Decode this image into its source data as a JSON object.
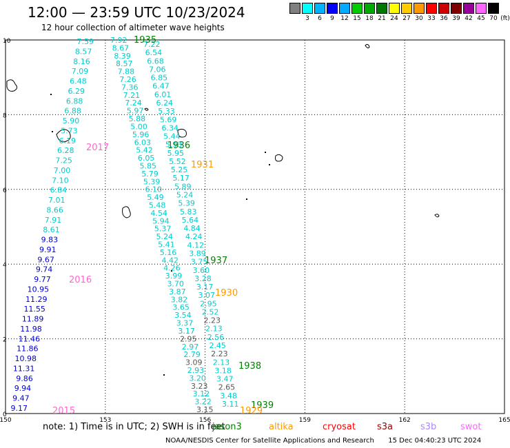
{
  "header": {
    "title": "12:00 — 23:59 UTC 10/23/2024",
    "subtitle": "12 hour collection of altimeter wave heights"
  },
  "legend_scale": {
    "unit": "(ft)",
    "bins": [
      {
        "label": "",
        "color": "#808080"
      },
      {
        "label": "3",
        "color": "#00ffff"
      },
      {
        "label": "6",
        "color": "#00b3ff"
      },
      {
        "label": "9",
        "color": "#0000ff"
      },
      {
        "label": "12",
        "color": "#00aaff"
      },
      {
        "label": "15",
        "color": "#00cc00"
      },
      {
        "label": "18",
        "color": "#00aa00"
      },
      {
        "label": "21",
        "color": "#007700"
      },
      {
        "label": "24",
        "color": "#ffff00"
      },
      {
        "label": "27",
        "color": "#ffcc00"
      },
      {
        "label": "30",
        "color": "#ff9900"
      },
      {
        "label": "33",
        "color": "#ff0000"
      },
      {
        "label": "36",
        "color": "#cc0000"
      },
      {
        "label": "39",
        "color": "#800000"
      },
      {
        "label": "42",
        "color": "#990099"
      },
      {
        "label": "45",
        "color": "#ff66ff"
      },
      {
        "label": "70",
        "color": "#000000"
      }
    ]
  },
  "axes": {
    "x_ticks": [
      "150",
      "153",
      "156",
      "159",
      "162",
      "165"
    ],
    "y_ticks": [
      "0",
      "2",
      "4",
      "6",
      "8",
      "10"
    ]
  },
  "colors": {
    "cyan": "#00cccc",
    "blue": "#0000cc",
    "gray": "#555555",
    "green": "#008000",
    "orange": "#ff9900",
    "pink": "#ff66cc"
  },
  "tracks": {
    "left_values": [
      "7.59",
      "8.57",
      "8.16",
      "7.09",
      "6.48",
      "6.29",
      "6.88",
      "6.88",
      "5.90",
      "5.73",
      "6.19",
      "6.28",
      "7.25",
      "7.00",
      "7.10",
      "6.84",
      "7.01",
      "8.66",
      "7.91",
      "8.61",
      "9.83",
      "9.91",
      "9.67",
      "9.74",
      "9.77",
      "10.95",
      "11.29",
      "11.55",
      "11.89",
      "11.98",
      "11.46",
      "11.86",
      "10.98",
      "11.31",
      "9.86",
      "9.94",
      "9.47",
      "9.17"
    ],
    "left_colors": [
      "cyan",
      "cyan",
      "cyan",
      "cyan",
      "cyan",
      "cyan",
      "cyan",
      "cyan",
      "cyan",
      "cyan",
      "cyan",
      "cyan",
      "cyan",
      "cyan",
      "cyan",
      "cyan",
      "cyan",
      "cyan",
      "cyan",
      "cyan",
      "blue",
      "blue",
      "blue",
      "blue",
      "blue",
      "blue",
      "blue",
      "blue",
      "blue",
      "blue",
      "blue",
      "blue",
      "blue",
      "blue",
      "blue",
      "blue",
      "blue",
      "blue"
    ],
    "right_col1": [
      "7.92",
      "8.67",
      "8.39",
      "8.57",
      "7.88",
      "7.26",
      "7.36",
      "7.21",
      "7.24",
      "5.97",
      "5.88",
      "5.00",
      "5.96",
      "6.03",
      "5.42",
      "6.05",
      "5.85",
      "5.79",
      "5.39",
      "6.10",
      "5.49",
      "5.48",
      "4.54",
      "5.94",
      "5.37",
      "5.24",
      "5.41",
      "5.16",
      "4.42",
      "4.26",
      "3.99",
      "3.70",
      "3.87",
      "3.82",
      "3.65",
      "3.54",
      "3.37",
      "3.17",
      "2.95",
      "2.97",
      "2.79",
      "3.09",
      "2.93",
      "3.20",
      "3.23",
      "3.12",
      "3.22",
      "3.15"
    ],
    "right_col2": [
      "7.22",
      "6.54",
      "6.68",
      "7.06",
      "6.85",
      "6.47",
      "6.01",
      "6.24",
      "5.33",
      "5.69",
      "6.34",
      "5.44",
      "5.93",
      "5.95",
      "5.52",
      "5.25",
      "5.17",
      "5.89",
      "5.24",
      "5.39",
      "5.83",
      "5.64",
      "4.84",
      "4.24",
      "4.12",
      "3.89",
      "3.75",
      "3.60",
      "3.28",
      "3.17",
      "3.07",
      "2.95",
      "2.52",
      "2.23",
      "2.13",
      "2.56",
      "2.45",
      "2.23",
      "2.13",
      "3.18",
      "3.47",
      "2.65",
      "3.48",
      "3.11"
    ],
    "time_labels": [
      {
        "text": "1935",
        "color": "green"
      },
      {
        "text": "2017",
        "color": "pink"
      },
      {
        "text": "1936",
        "color": "green"
      },
      {
        "text": "1931",
        "color": "orange"
      },
      {
        "text": "1937",
        "color": "green"
      },
      {
        "text": "2016",
        "color": "pink"
      },
      {
        "text": "1930",
        "color": "orange"
      },
      {
        "text": "1938",
        "color": "green"
      },
      {
        "text": "1939",
        "color": "green"
      },
      {
        "text": "2015",
        "color": "pink"
      },
      {
        "text": "1929",
        "color": "orange"
      }
    ]
  },
  "footer": {
    "note": "note:  1) Time is in UTC; 2) SWH is in feet",
    "satellites": [
      {
        "name": "jason3",
        "color": "#008000"
      },
      {
        "name": "altika",
        "color": "#ff9900"
      },
      {
        "name": "cryosat",
        "color": "#ff0000"
      },
      {
        "name": "s3a",
        "color": "#990000"
      },
      {
        "name": "s3b",
        "color": "#aa88ff"
      },
      {
        "name": "swot",
        "color": "#ff66ff"
      }
    ],
    "credit": "NOAA/NESDIS Center for Satellite Applications and Research",
    "timestamp": "15 Dec 04:40:23 UTC 2024"
  }
}
